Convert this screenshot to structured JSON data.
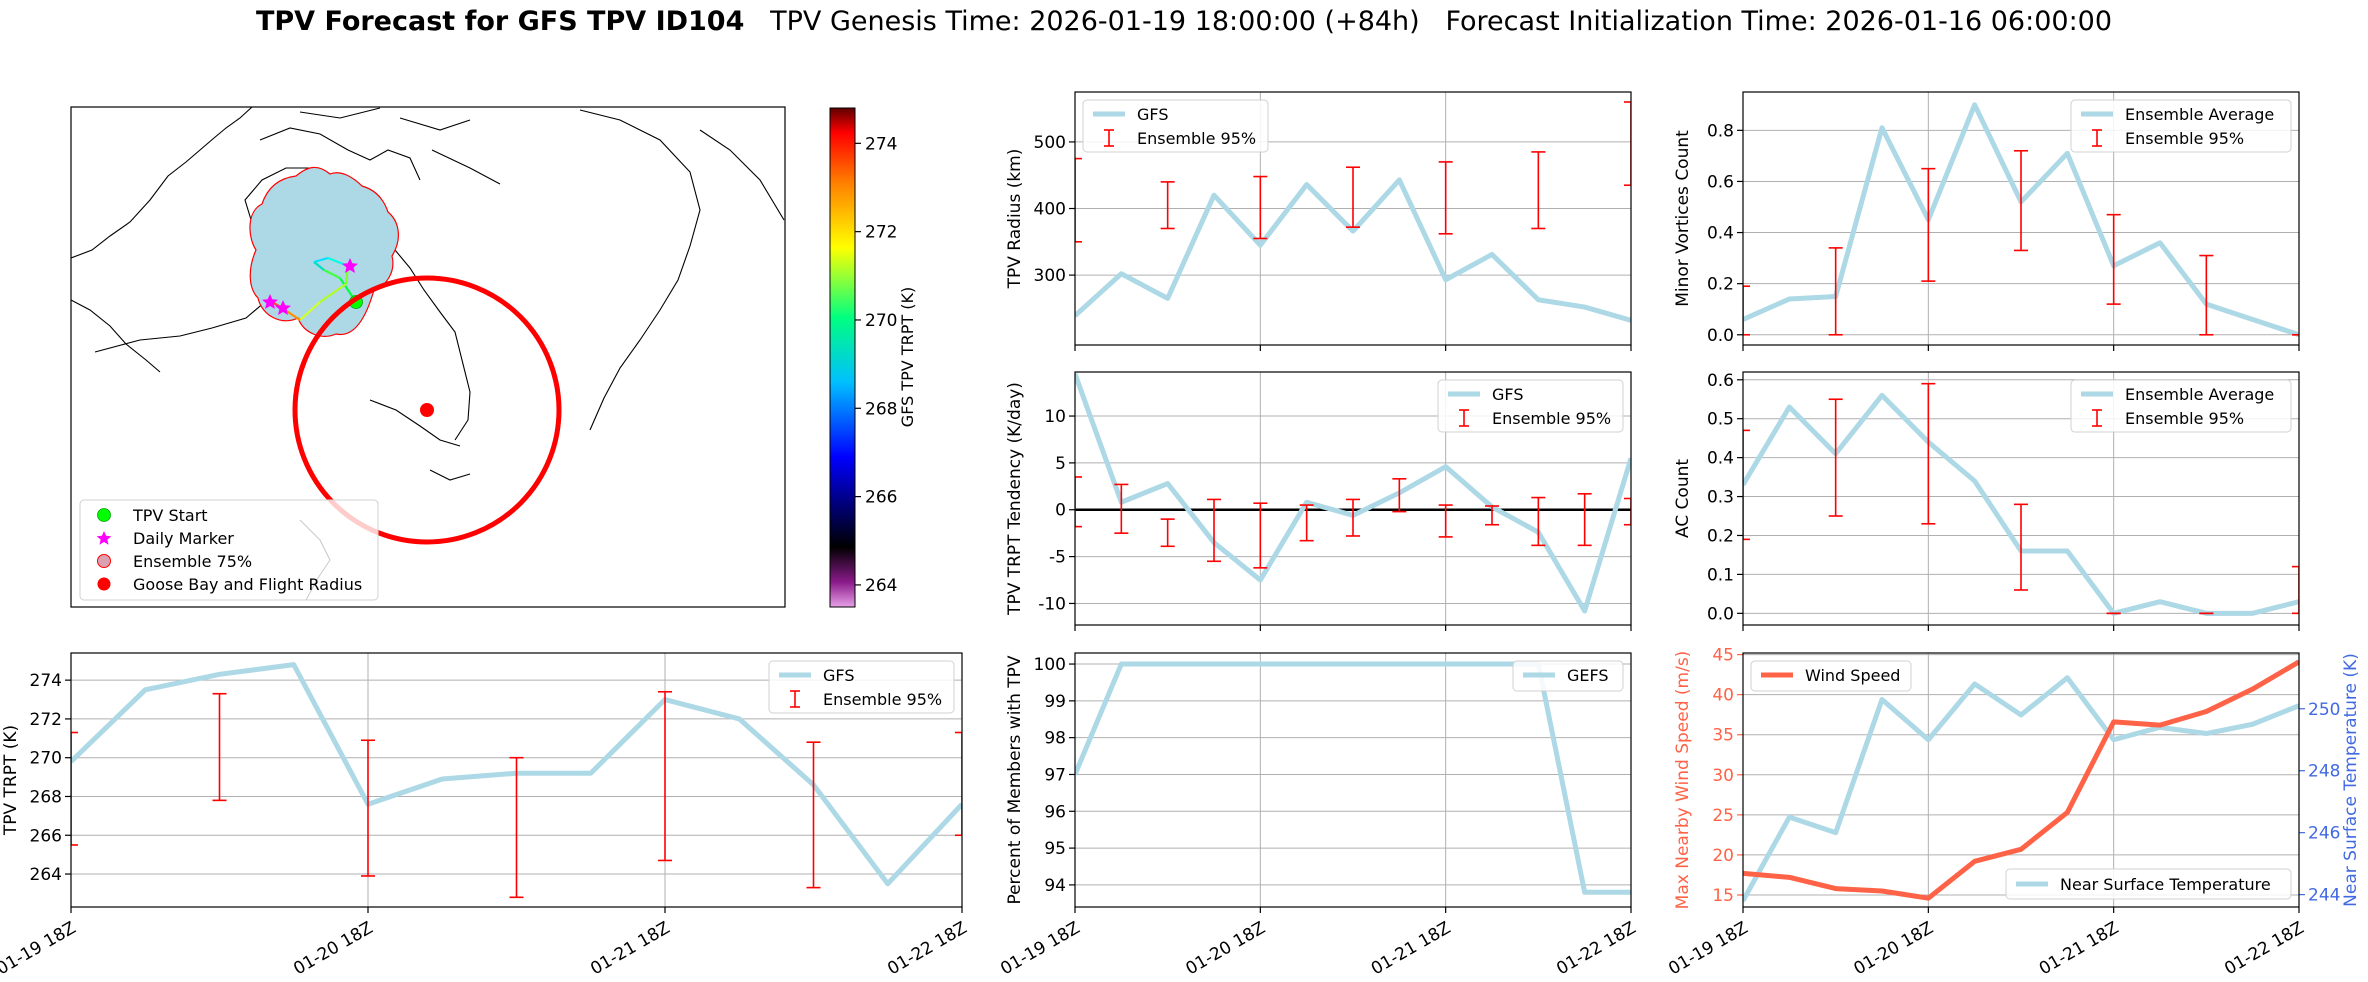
{
  "title": {
    "bold": "TPV Forecast for GFS TPV ID104",
    "rest": "TPV Genesis Time: 2026-01-19 18:00:00 (+84h)   Forecast Initialization Time: 2026-01-16 06:00:00"
  },
  "colors": {
    "gfs_line": "#add8e6",
    "ensemble_bar": "#ff0000",
    "wind_line": "#ff6347",
    "temp_axis": "#4169e1",
    "wind_axis": "#ff6347",
    "grid": "#b0b0b0",
    "zero_line": "#000000"
  },
  "map": {
    "legend": [
      {
        "label": "TPV Start",
        "symbol": "green-circle-icon"
      },
      {
        "label": "Daily Marker",
        "symbol": "magenta-star-icon"
      },
      {
        "label": "Ensemble 75%",
        "symbol": "pink-circle-icon"
      },
      {
        "label": "Goose Bay and Flight Radius",
        "symbol": "red-circle-icon"
      }
    ],
    "colorbar": {
      "label": "GFS TPV TRPT (K)",
      "ticks": [
        "264",
        "266",
        "268",
        "270",
        "272",
        "274"
      ],
      "range": [
        263.5,
        274.8
      ]
    }
  },
  "chart_data": [
    {
      "id": "radius",
      "type": "line",
      "title": "",
      "xlabel": "",
      "ylabel": "TPV Radius (km)",
      "x": [
        0,
        1,
        2,
        3,
        4,
        5,
        6,
        7,
        8,
        9,
        10,
        11,
        12
      ],
      "xticks": [],
      "xlim": [
        0,
        12
      ],
      "ylim": [
        195,
        575
      ],
      "yticks": [
        300,
        400,
        500
      ],
      "legend_loc": "upper-left",
      "series": [
        {
          "name": "GFS",
          "values": [
            239,
            302,
            265,
            420,
            345,
            436,
            366,
            443,
            293,
            331,
            263,
            252,
            232
          ]
        }
      ],
      "error_bars": {
        "name": "Ensemble 95%",
        "x": [
          0,
          2,
          4,
          6,
          8,
          10,
          12
        ],
        "low": [
          350,
          370,
          355,
          372,
          362,
          370,
          435
        ],
        "high": [
          475,
          440,
          448,
          462,
          470,
          485,
          560
        ]
      }
    },
    {
      "id": "minor",
      "type": "line",
      "title": "",
      "xlabel": "",
      "ylabel": "Minor Vortices Count",
      "x": [
        0,
        1,
        2,
        3,
        4,
        5,
        6,
        7,
        8,
        9,
        10,
        11,
        12
      ],
      "xticks": [],
      "xlim": [
        0,
        12
      ],
      "ylim": [
        -0.04,
        0.95
      ],
      "yticks": [
        0.0,
        0.2,
        0.4,
        0.6,
        0.8
      ],
      "legend_loc": "upper-right",
      "series": [
        {
          "name": "Ensemble Average",
          "values": [
            0.06,
            0.14,
            0.15,
            0.81,
            0.45,
            0.9,
            0.52,
            0.71,
            0.27,
            0.36,
            0.12,
            0.06,
            0.0
          ]
        }
      ],
      "error_bars": {
        "name": "Ensemble 95%",
        "x": [
          0,
          2,
          4,
          6,
          8,
          10,
          12
        ],
        "low": [
          0.0,
          0.0,
          0.21,
          0.33,
          0.12,
          0.0,
          0.0
        ],
        "high": [
          0.19,
          0.34,
          0.65,
          0.72,
          0.47,
          0.31,
          0.0
        ]
      }
    },
    {
      "id": "tendency",
      "type": "line",
      "title": "",
      "xlabel": "",
      "ylabel": "TPV TRPT Tendency (K/day)",
      "x": [
        0,
        1,
        2,
        3,
        4,
        5,
        6,
        7,
        8,
        9,
        10,
        11,
        12
      ],
      "xticks": [],
      "xlim": [
        0,
        12
      ],
      "ylim": [
        -12.3,
        14.7
      ],
      "yticks": [
        -10,
        -5,
        0,
        5,
        10
      ],
      "hline": 0,
      "legend_loc": "upper-right",
      "series": [
        {
          "name": "GFS",
          "values": [
            14.5,
            0.8,
            2.8,
            -3.5,
            -7.5,
            0.8,
            -0.6,
            1.8,
            4.6,
            0.3,
            -2.4,
            -10.8,
            5.5
          ]
        }
      ],
      "error_bars": {
        "name": "Ensemble 95%",
        "x": [
          0,
          1,
          2,
          3,
          4,
          5,
          6,
          7,
          8,
          9,
          10,
          11,
          12
        ],
        "low": [
          -1.8,
          -2.5,
          -3.9,
          -5.5,
          -6.2,
          -3.3,
          -2.8,
          -0.2,
          -2.9,
          -1.6,
          -3.8,
          -3.8,
          -1.6
        ],
        "high": [
          3.5,
          2.7,
          -1.0,
          1.1,
          0.7,
          0.5,
          1.1,
          3.3,
          0.5,
          0.4,
          1.3,
          1.7,
          1.2
        ]
      }
    },
    {
      "id": "ac",
      "type": "line",
      "title": "",
      "xlabel": "",
      "ylabel": "AC Count",
      "x": [
        0,
        1,
        2,
        3,
        4,
        5,
        6,
        7,
        8,
        9,
        10,
        11,
        12
      ],
      "xticks": [],
      "xlim": [
        0,
        12
      ],
      "ylim": [
        -0.03,
        0.62
      ],
      "yticks": [
        0.0,
        0.1,
        0.2,
        0.3,
        0.4,
        0.5,
        0.6
      ],
      "legend_loc": "upper-right",
      "series": [
        {
          "name": "Ensemble Average",
          "values": [
            0.33,
            0.53,
            0.41,
            0.56,
            0.44,
            0.34,
            0.16,
            0.16,
            0.0,
            0.03,
            0.0,
            0.0,
            0.03
          ]
        }
      ],
      "error_bars": {
        "name": "Ensemble 95%",
        "x": [
          0,
          2,
          4,
          6,
          8,
          10,
          12
        ],
        "low": [
          0.19,
          0.25,
          0.23,
          0.06,
          0.0,
          0.0,
          0.0
        ],
        "high": [
          0.47,
          0.55,
          0.59,
          0.28,
          0.0,
          0.0,
          0.12
        ]
      }
    },
    {
      "id": "trpt",
      "type": "line",
      "title": "",
      "xlabel": "",
      "ylabel": "TPV TRPT (K)",
      "x": [
        0,
        1,
        2,
        3,
        4,
        5,
        6,
        7,
        8,
        9,
        10,
        11,
        12
      ],
      "xticks": [
        "01-19 18Z",
        "01-20 18Z",
        "01-21 18Z",
        "01-22 18Z"
      ],
      "xtick_pos": [
        0,
        4,
        8,
        12
      ],
      "xlim": [
        0,
        12
      ],
      "ylim": [
        262.3,
        275.4
      ],
      "yticks": [
        264,
        266,
        268,
        270,
        272,
        274
      ],
      "legend_loc": "upper-right",
      "series": [
        {
          "name": "GFS",
          "values": [
            269.8,
            273.5,
            274.3,
            274.8,
            267.6,
            268.9,
            269.2,
            269.2,
            273.0,
            272.0,
            268.6,
            263.5,
            267.6
          ]
        }
      ],
      "error_bars": {
        "name": "Ensemble 95%",
        "x": [
          0,
          2,
          4,
          6,
          8,
          10,
          12
        ],
        "low": [
          265.5,
          267.8,
          263.9,
          262.8,
          264.7,
          263.3,
          266.0
        ],
        "high": [
          271.3,
          273.3,
          270.9,
          270.0,
          273.4,
          270.8,
          271.3
        ]
      }
    },
    {
      "id": "members",
      "type": "line",
      "title": "",
      "xlabel": "",
      "ylabel": "Percent of Members with TPV",
      "x": [
        0,
        1,
        2,
        3,
        4,
        5,
        6,
        7,
        8,
        9,
        10,
        11,
        12
      ],
      "xticks": [
        "01-19 18Z",
        "01-20 18Z",
        "01-21 18Z",
        "01-22 18Z"
      ],
      "xtick_pos": [
        0,
        4,
        8,
        12
      ],
      "xlim": [
        0,
        12
      ],
      "ylim": [
        93.4,
        100.3
      ],
      "yticks": [
        94,
        95,
        96,
        97,
        98,
        99,
        100
      ],
      "legend_loc": "upper-right",
      "series": [
        {
          "name": "GEFS",
          "values": [
            97.0,
            100,
            100,
            100,
            100,
            100,
            100,
            100,
            100,
            100,
            100,
            93.8,
            93.8
          ]
        }
      ]
    },
    {
      "id": "wind",
      "type": "line",
      "title": "",
      "xlabel": "",
      "ylabel": "Max Nearby Wind Speed (m/s)",
      "ylabel_right": "Near Surface Temperature (K)",
      "x": [
        0,
        1,
        2,
        3,
        4,
        5,
        6,
        7,
        8,
        9,
        10,
        11,
        12
      ],
      "xticks": [
        "01-19 18Z",
        "01-20 18Z",
        "01-21 18Z",
        "01-22 18Z"
      ],
      "xtick_pos": [
        0,
        4,
        8,
        12
      ],
      "xlim": [
        0,
        12
      ],
      "ylim": [
        13.5,
        45.2
      ],
      "yticks": [
        15,
        20,
        25,
        30,
        35,
        40,
        45
      ],
      "ylim_right": [
        243.6,
        251.8
      ],
      "yticks_right": [
        244,
        246,
        248,
        250
      ],
      "legend_loc": "upper-left",
      "legend_right_loc": "lower-right",
      "series": [
        {
          "name": "Wind Speed",
          "values": [
            17.7,
            17.2,
            15.8,
            15.5,
            14.6,
            19.2,
            20.7,
            25.3,
            36.6,
            36.2,
            37.9,
            40.7,
            44.1
          ]
        }
      ],
      "series_right": [
        {
          "name": "Near Surface Temperature",
          "values": [
            243.8,
            246.5,
            246.0,
            250.3,
            249.0,
            250.8,
            249.8,
            251.0,
            249.0,
            249.4,
            249.2,
            249.5,
            250.1
          ]
        }
      ]
    }
  ]
}
